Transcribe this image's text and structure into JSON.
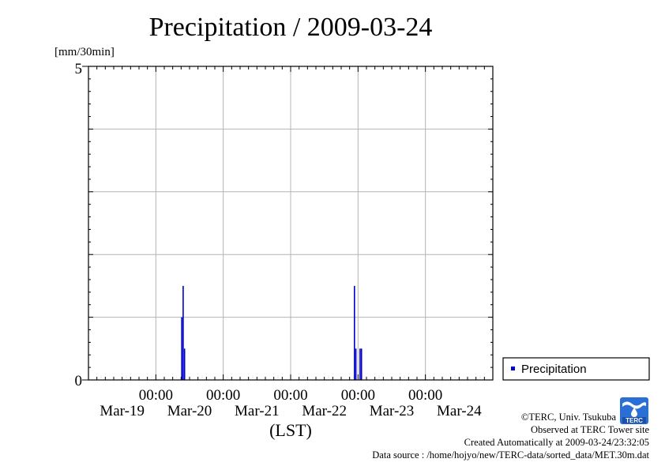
{
  "chart_data": {
    "type": "bar",
    "title": "Precipitation / 2009-03-24",
    "ylabel": "[mm/30min]",
    "xlabel": "(LST)",
    "ylim": [
      0,
      5
    ],
    "y_ticks": [
      "0",
      "5"
    ],
    "x_range_days": [
      "Mar-19 00:00",
      "Mar-25 00:00"
    ],
    "x_tick_times": [
      "00:00",
      "00:00",
      "00:00",
      "00:00",
      "00:00"
    ],
    "x_tick_dates": [
      "Mar-19",
      "Mar-20",
      "Mar-21",
      "Mar-22",
      "Mar-23",
      "Mar-24"
    ],
    "grid": true,
    "legend_position": "right",
    "series": [
      {
        "name": "Precipitation",
        "color": "#0000cc",
        "points": [
          {
            "time": "Mar-20 09:00",
            "value": 1.0
          },
          {
            "time": "Mar-20 09:30",
            "value": 1.5
          },
          {
            "time": "Mar-20 10:00",
            "value": 0.5
          },
          {
            "time": "Mar-22 22:30",
            "value": 1.5
          },
          {
            "time": "Mar-22 23:00",
            "value": 0.5
          },
          {
            "time": "Mar-23 00:30",
            "value": 0.5
          },
          {
            "time": "Mar-23 01:00",
            "value": 0.5
          }
        ]
      }
    ]
  },
  "credits": {
    "copyright": "©TERC, Univ. Tsukuba",
    "observed": "Observed at TERC Tower site",
    "created": "Created Automatically at 2009-03-24/23:32:05",
    "source": "Data source : /home/hojyo/new/TERC-data/sorted_data/MET.30m.dat"
  },
  "logo_text": "TERC"
}
